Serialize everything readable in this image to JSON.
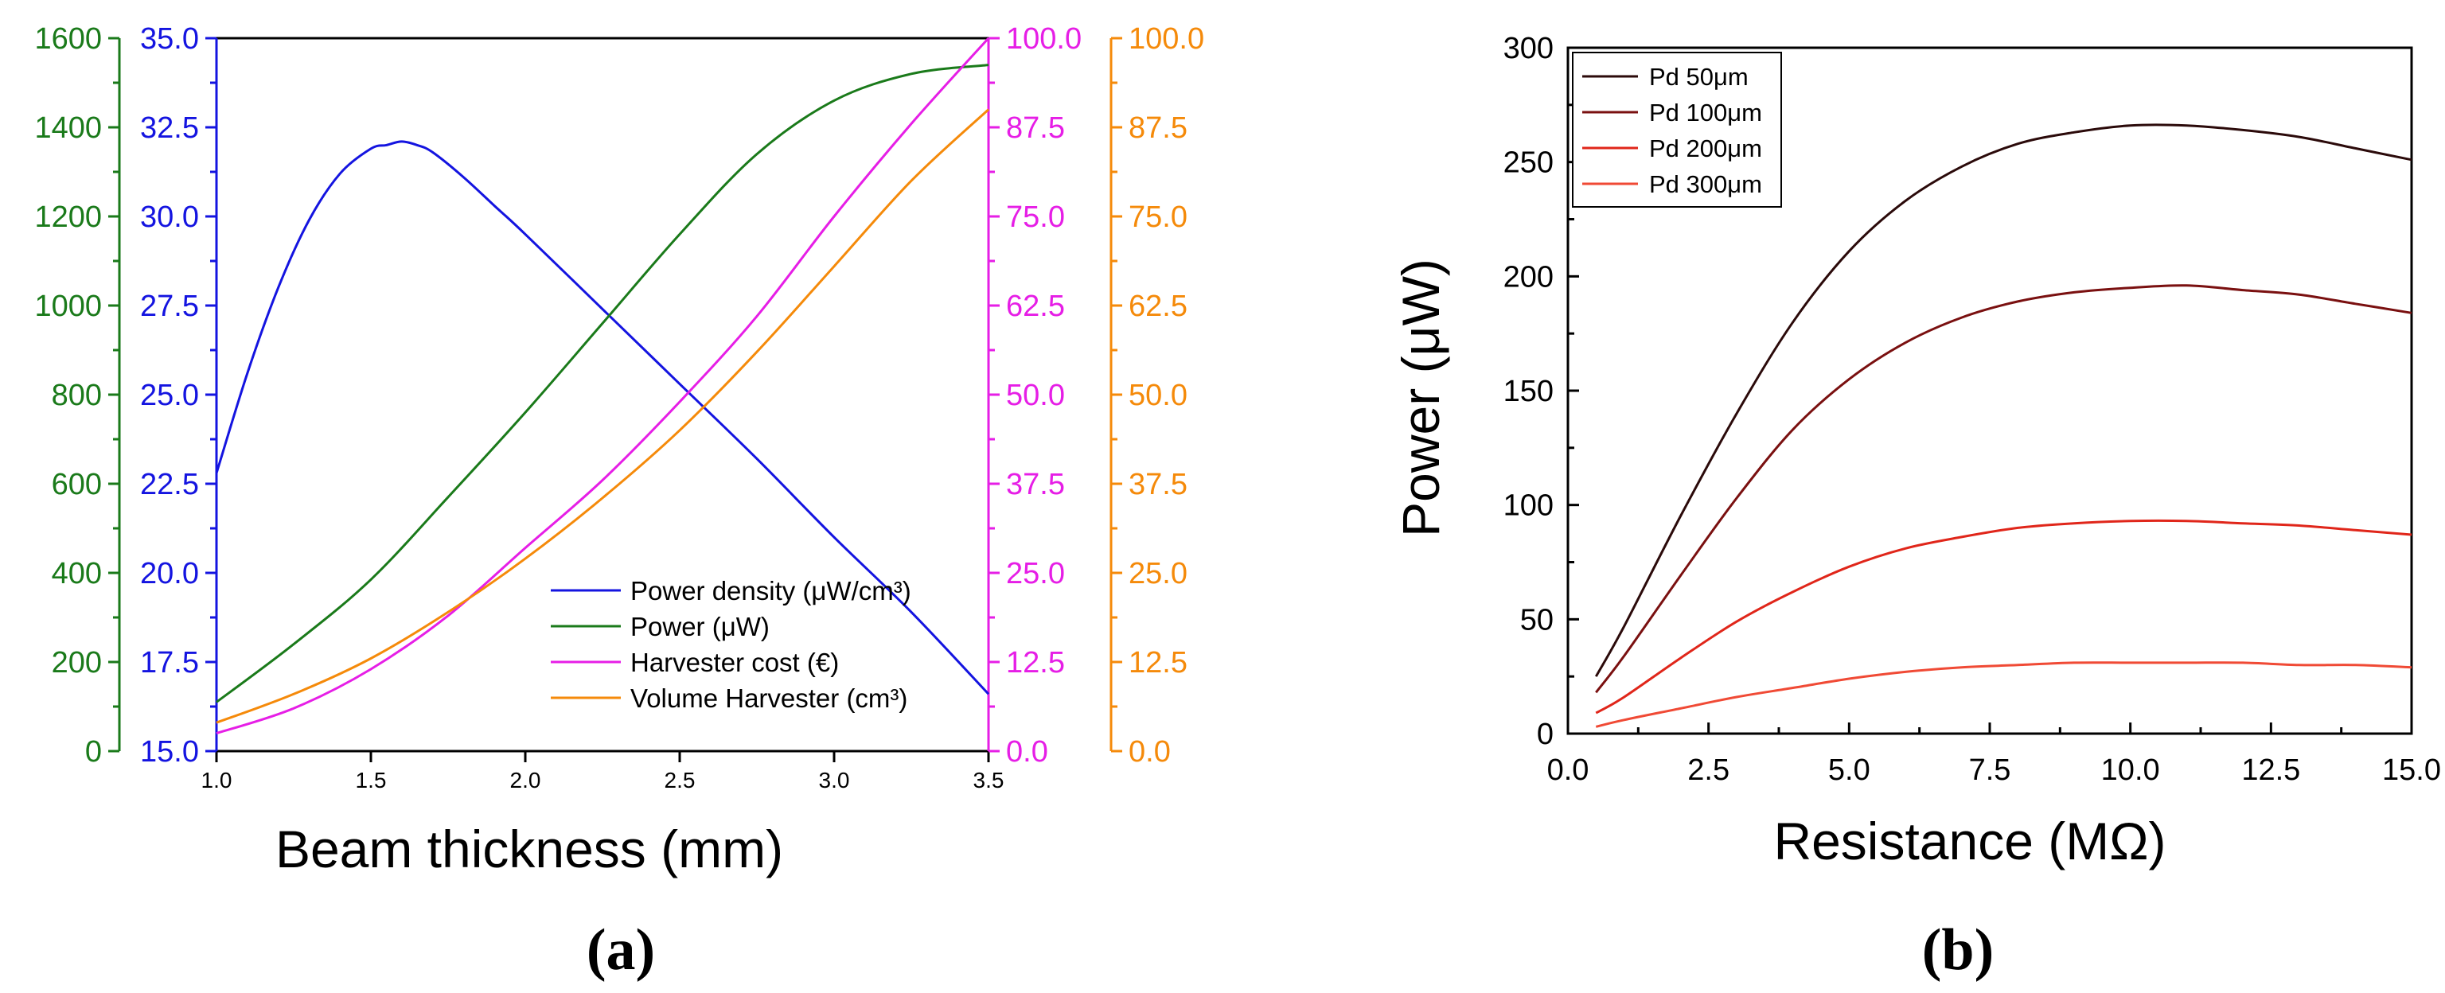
{
  "chart_data": [
    {
      "type": "line",
      "panel_label": "(a)",
      "xlabel": "Beam thickness (mm)",
      "xlim": [
        1.0,
        3.5
      ],
      "x_ticks": [
        1.0,
        1.5,
        2.0,
        2.5,
        3.0,
        3.5
      ],
      "x_tick_labels": [
        "1.0",
        "1.5",
        "2.0",
        "2.5",
        "3.0",
        "3.5"
      ],
      "axes": [
        {
          "id": "power",
          "side": "left-outer",
          "color": "#1a7a1a",
          "range": [
            0,
            1600
          ],
          "ticks": [
            0,
            200,
            400,
            600,
            800,
            1000,
            1200,
            1400,
            1600
          ],
          "tick_labels": [
            "0",
            "200",
            "400",
            "600",
            "800",
            "1000",
            "1200",
            "1400",
            "1600"
          ]
        },
        {
          "id": "density",
          "side": "left-inner",
          "color": "#1414e0",
          "range": [
            15,
            35
          ],
          "ticks": [
            15,
            17.5,
            20,
            22.5,
            25,
            27.5,
            30,
            32.5,
            35
          ],
          "tick_labels": [
            "15.0",
            "17.5",
            "20.0",
            "22.5",
            "25.0",
            "27.5",
            "30.0",
            "32.5",
            "35.0"
          ]
        },
        {
          "id": "cost",
          "side": "right-inner",
          "color": "#e61ee6",
          "range": [
            0,
            100
          ],
          "ticks": [
            0,
            12.5,
            25,
            37.5,
            50,
            62.5,
            75,
            87.5,
            100
          ],
          "tick_labels": [
            "0.0",
            "12.5",
            "25.0",
            "37.5",
            "50.0",
            "62.5",
            "75.0",
            "87.5",
            "100.0"
          ]
        },
        {
          "id": "volume",
          "side": "right-outer",
          "color": "#f58a0a",
          "range": [
            0,
            100
          ],
          "ticks": [
            0,
            12.5,
            25,
            37.5,
            50,
            62.5,
            75,
            87.5,
            100
          ],
          "tick_labels": [
            "0.0",
            "12.5",
            "25.0",
            "37.5",
            "50.0",
            "62.5",
            "75.0",
            "87.5",
            "100.0"
          ]
        }
      ],
      "series": [
        {
          "name": "Power density (μW/cm³)",
          "axis": "density",
          "color": "#1414e0",
          "x": [
            1.0,
            1.1,
            1.2,
            1.3,
            1.4,
            1.5,
            1.55,
            1.6,
            1.65,
            1.7,
            1.8,
            1.9,
            2.0,
            2.25,
            2.5,
            2.75,
            3.0,
            3.25,
            3.5
          ],
          "y": [
            22.8,
            25.6,
            28.0,
            29.9,
            31.2,
            31.9,
            32.0,
            32.1,
            32.0,
            31.8,
            31.1,
            30.3,
            29.5,
            27.4,
            25.3,
            23.2,
            21.0,
            18.9,
            16.6
          ]
        },
        {
          "name": "Power (μW)",
          "axis": "power",
          "color": "#1a7a1a",
          "x": [
            1.0,
            1.25,
            1.5,
            1.75,
            2.0,
            2.25,
            2.5,
            2.75,
            3.0,
            3.25,
            3.5
          ],
          "y": [
            110,
            240,
            385,
            570,
            760,
            960,
            1160,
            1340,
            1460,
            1520,
            1540
          ]
        },
        {
          "name": "Harvester cost (€)",
          "axis": "cost",
          "color": "#e61ee6",
          "x": [
            1.0,
            1.25,
            1.5,
            1.75,
            2.0,
            2.25,
            2.5,
            2.75,
            3.0,
            3.25,
            3.5
          ],
          "y": [
            2.5,
            6.0,
            11.5,
            19.0,
            28.5,
            38.0,
            49.0,
            61.0,
            75.0,
            88.0,
            100.0
          ]
        },
        {
          "name": "Volume Harvester (cm³)",
          "axis": "volume",
          "color": "#f58a0a",
          "x": [
            1.0,
            1.25,
            1.5,
            1.75,
            2.0,
            2.25,
            2.5,
            2.75,
            3.0,
            3.25,
            3.5
          ],
          "y": [
            4.0,
            8.0,
            13.0,
            19.5,
            27.0,
            35.5,
            45.0,
            56.0,
            68.0,
            80.0,
            90.0
          ]
        }
      ],
      "legend_position": "bottom-right"
    },
    {
      "type": "line",
      "panel_label": "(b)",
      "xlabel": "Resistance (MΩ)",
      "ylabel": "Power (μW)",
      "xlim": [
        0,
        15
      ],
      "ylim": [
        0,
        300
      ],
      "x_ticks": [
        0,
        2.5,
        5,
        7.5,
        10,
        12.5,
        15
      ],
      "x_tick_labels": [
        "0.0",
        "2.5",
        "5.0",
        "7.5",
        "10.0",
        "12.5",
        "15.0"
      ],
      "y_ticks": [
        0,
        50,
        100,
        150,
        200,
        250,
        300
      ],
      "y_tick_labels": [
        "0",
        "50",
        "100",
        "150",
        "200",
        "250",
        "300"
      ],
      "x": [
        0.5,
        1,
        2,
        3,
        4,
        5,
        6,
        7,
        8,
        9,
        10,
        11,
        12,
        13,
        14,
        15
      ],
      "series": [
        {
          "name": "Pd   50μm",
          "color": "#2b0a0a",
          "values": [
            25,
            47,
            95,
            140,
            180,
            211,
            233,
            248,
            258,
            263,
            266,
            266,
            264,
            261,
            256,
            251
          ]
        },
        {
          "name": "Pd 100μm",
          "color": "#7a1010",
          "values": [
            18,
            34,
            69,
            103,
            133,
            155,
            171,
            182,
            189,
            193,
            195,
            196,
            194,
            192,
            188,
            184
          ]
        },
        {
          "name": "Pd 200μm",
          "color": "#e0261a",
          "values": [
            9,
            16,
            33,
            49,
            62,
            73,
            81,
            86,
            90,
            92,
            93,
            93,
            92,
            91,
            89,
            87
          ]
        },
        {
          "name": "Pd 300μm",
          "color": "#f04a35",
          "values": [
            3,
            6,
            11,
            16,
            20,
            24,
            27,
            29,
            30,
            31,
            31,
            31,
            31,
            30,
            30,
            29
          ]
        }
      ],
      "legend_position": "top-left"
    }
  ]
}
